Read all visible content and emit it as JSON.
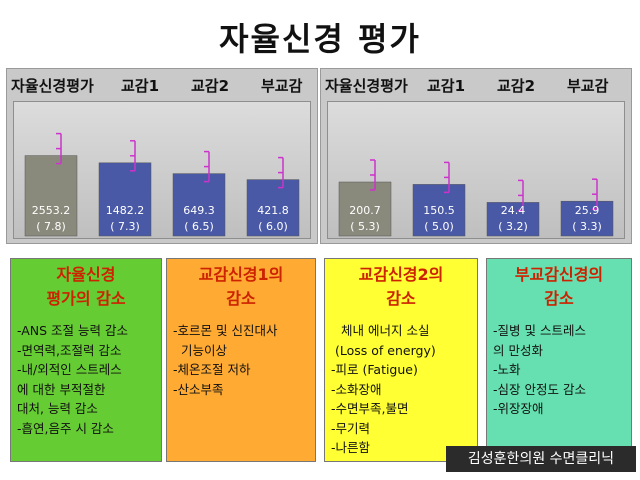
{
  "page_title": "자율신경 평가",
  "chart_data": [
    {
      "type": "bar",
      "headers": [
        "자율신경평가",
        "교감1",
        "교감2",
        "부교감"
      ],
      "categories": [
        "자율신경평가",
        "교감1",
        "교감2",
        "부교감"
      ],
      "values": [
        2553.2,
        1482.2,
        649.3,
        421.8
      ],
      "value_labels": [
        "2553.2",
        "1482.2",
        "649.3",
        "421.8"
      ],
      "sub_labels": [
        "( 7.8)",
        "( 7.3)",
        "( 6.5)",
        "( 6.0)"
      ],
      "bar_colors": [
        "#8a8a7c",
        "#4a59a6",
        "#4a59a6",
        "#4a59a6"
      ],
      "bar_heights_rel": [
        0.67,
        0.61,
        0.52,
        0.47
      ],
      "error_bars": true,
      "error_color": "#cc33cc"
    },
    {
      "type": "bar",
      "headers": [
        "자율신경평가",
        "교감1",
        "교감2",
        "부교감"
      ],
      "categories": [
        "자율신경평가",
        "교감1",
        "교감2",
        "부교감"
      ],
      "values": [
        200.7,
        150.5,
        24.4,
        25.9
      ],
      "value_labels": [
        "200.7",
        "150.5",
        "24.4",
        "25.9"
      ],
      "sub_labels": [
        "( 5.3)",
        "( 5.0)",
        "( 3.2)",
        "( 3.3)"
      ],
      "bar_colors": [
        "#8a8a7c",
        "#4a59a6",
        "#4a59a6",
        "#4a59a6"
      ],
      "bar_heights_rel": [
        0.45,
        0.43,
        0.28,
        0.29
      ],
      "error_bars": true,
      "error_color": "#cc33cc"
    }
  ],
  "boxes": [
    {
      "title_lines": [
        "자율신경",
        "평가의 감소"
      ],
      "bg": "#66cc33",
      "items": [
        "-ANS 조절 능력 감소",
        "-면역력,조절력 감소",
        "-내/외적인 스트레스",
        "에 대한 부적절한",
        "대처, 능력 감소",
        "-흡연,음주 시 감소"
      ]
    },
    {
      "title_lines": [
        "교감신경1의",
        "감소"
      ],
      "bg": "#ffaa33",
      "items": [
        "-호르몬 및 신진대사",
        "기능이상",
        "-체온조절 저하",
        "-산소부족"
      ]
    },
    {
      "title_lines": [
        "교감신경2의",
        "감소"
      ],
      "bg": "#ffff33",
      "items": [
        "체내 에너지 소실",
        "(Loss of energy)",
        "-피로 (Fatigue)",
        "-소화장애",
        "-수면부족,불면",
        "-무기력",
        "-나른함"
      ]
    },
    {
      "title_lines": [
        "부교감신경의",
        "감소"
      ],
      "bg": "#66e0b0",
      "items": [
        "-질병 및 스트레스",
        "의 만성화",
        "-노화",
        "-심장 안정도 감소",
        "-위장장애"
      ]
    }
  ],
  "watermark": "김성훈한의원 수면클리닉"
}
